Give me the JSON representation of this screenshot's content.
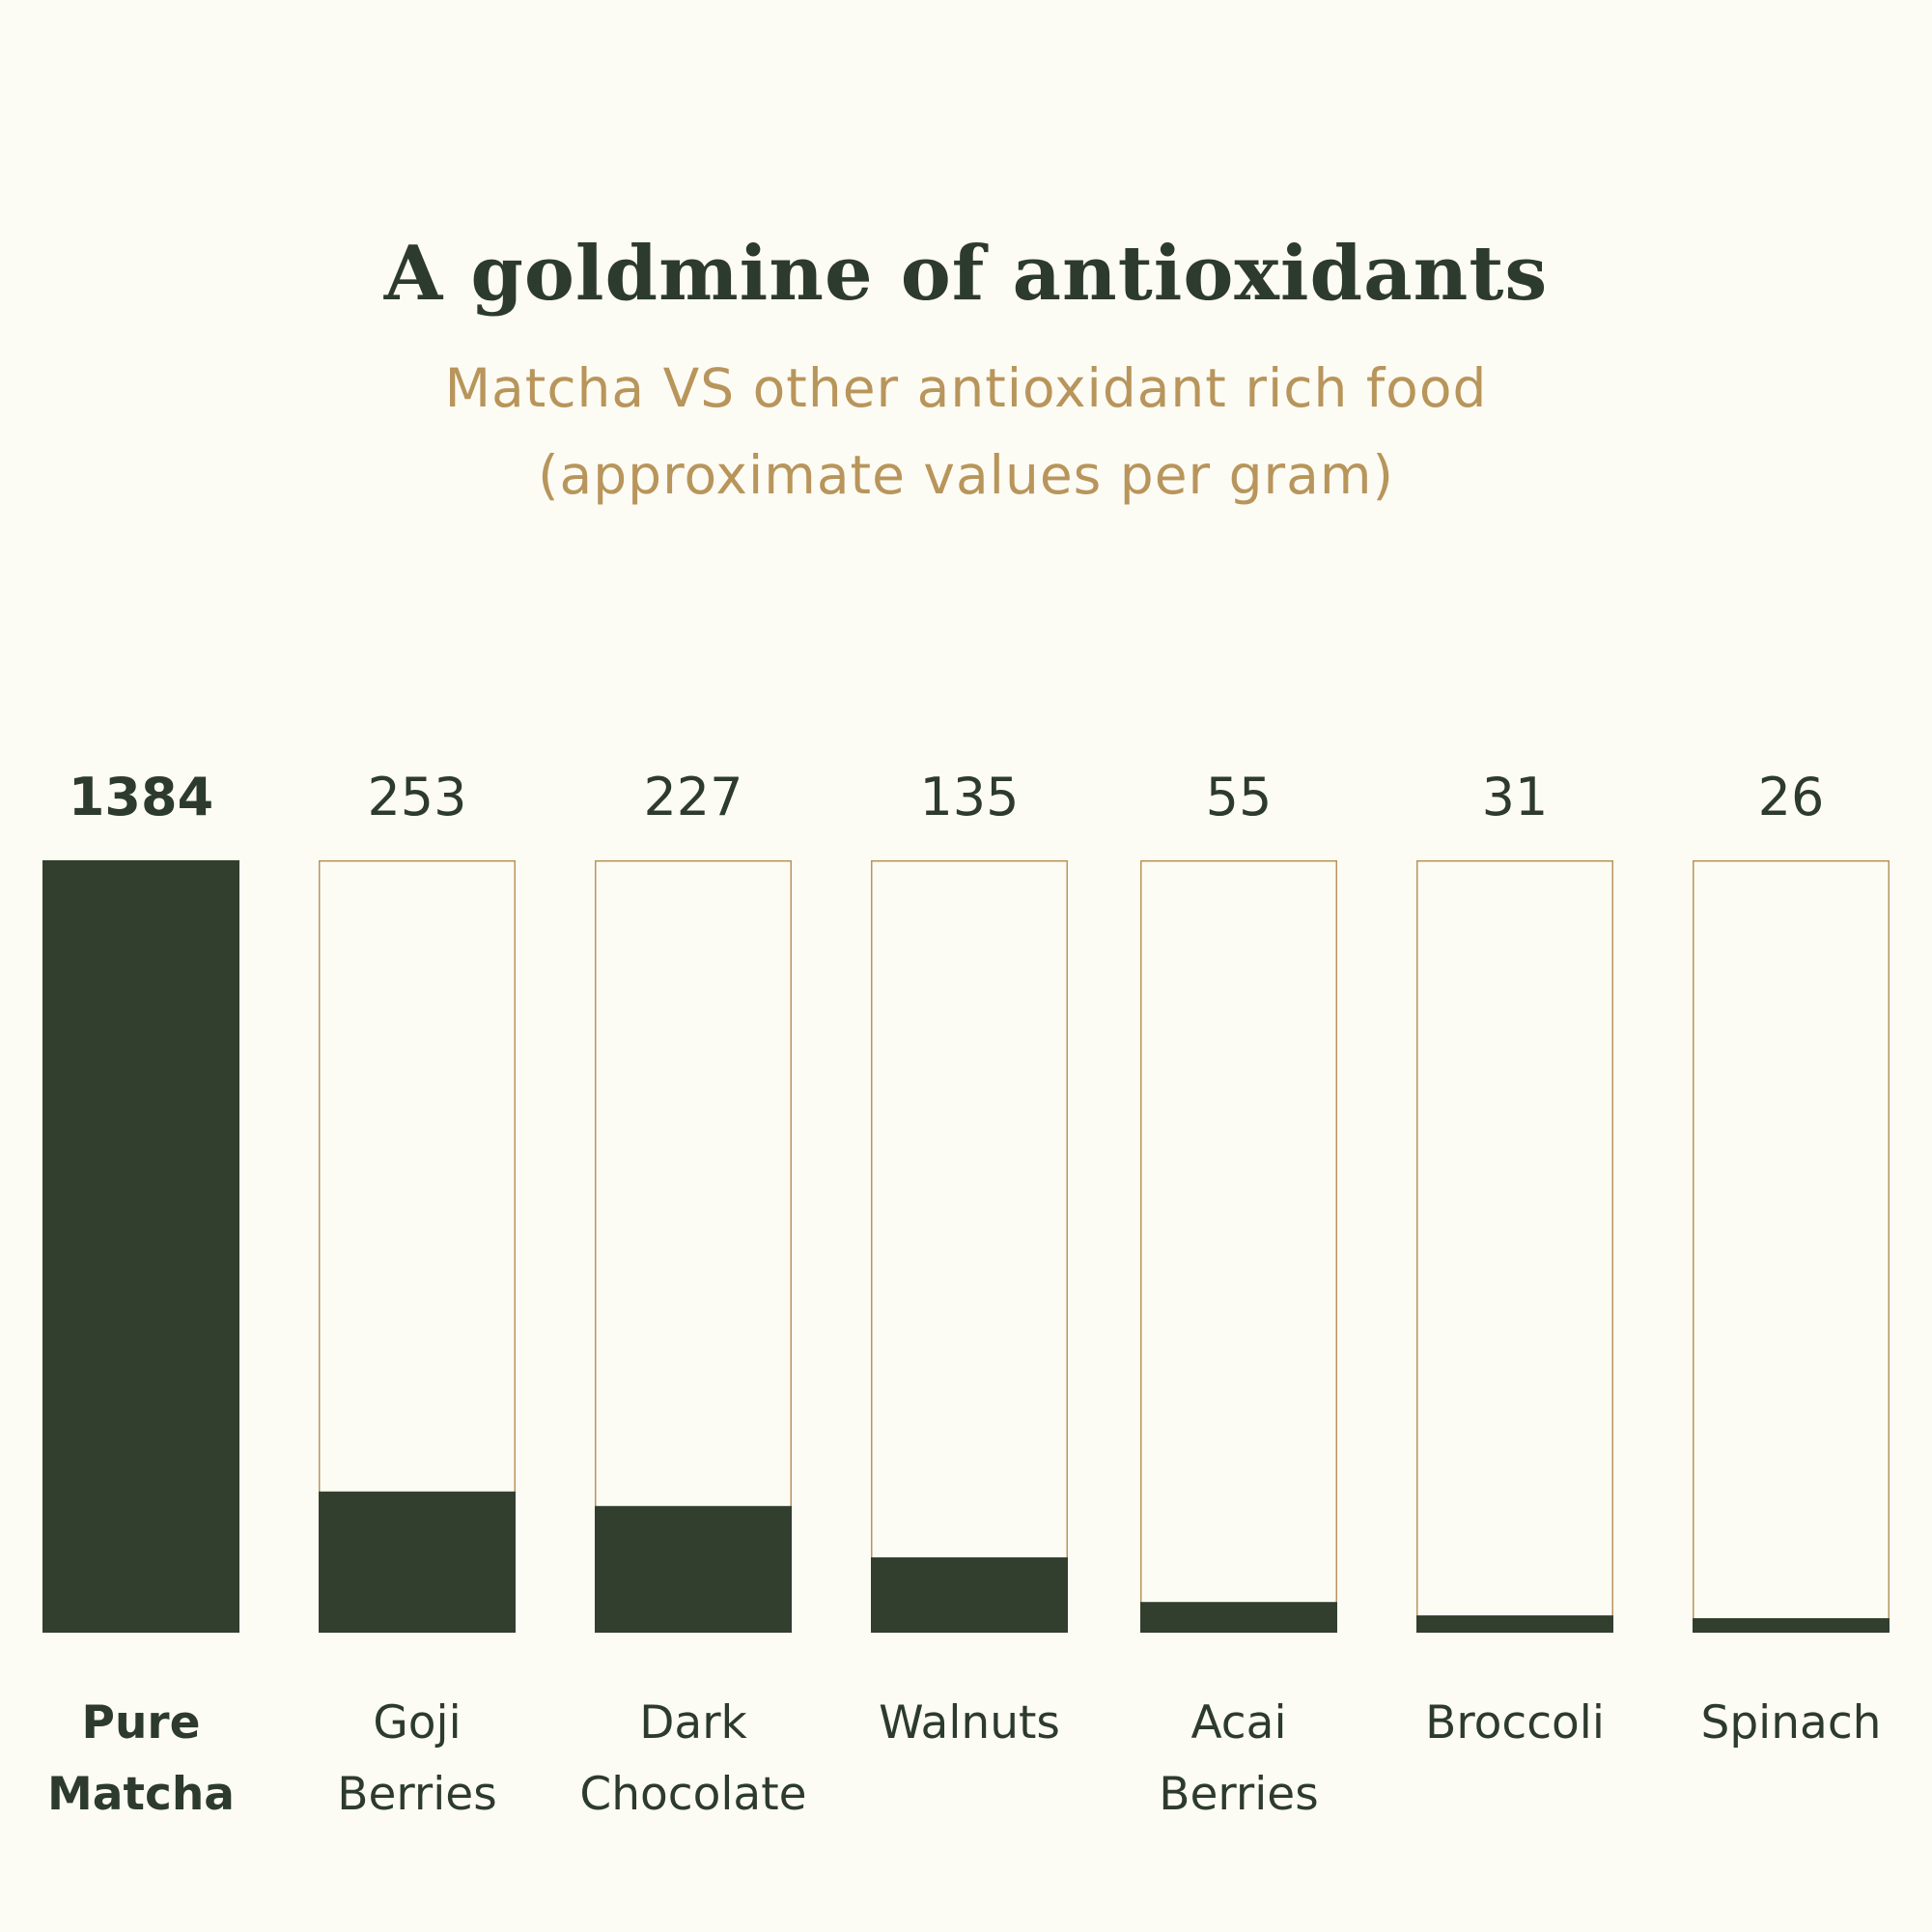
{
  "title": "A goldmine of antioxidants",
  "subtitle_line1": "Matcha VS other antioxidant rich food",
  "subtitle_line2": "(approximate values per gram)",
  "colors": {
    "background": "#fdfcf4",
    "bar_fill": "#323f2f",
    "bar_outline": "#b8955b",
    "title": "#2d3a2e",
    "subtitle": "#b8955b"
  },
  "chart_data": {
    "type": "bar",
    "title": "A goldmine of antioxidants",
    "subtitle": "Matcha VS other antioxidant rich food (approximate values per gram)",
    "categories": [
      [
        "Pure",
        "Matcha"
      ],
      [
        "Goji",
        "Berries"
      ],
      [
        "Dark",
        "Chocolate"
      ],
      [
        "Walnuts"
      ],
      [
        "Acai",
        "Berries"
      ],
      [
        "Broccoli"
      ],
      [
        "Spinach"
      ]
    ],
    "values": [
      1384,
      253,
      227,
      135,
      55,
      31,
      26
    ],
    "value_labels": [
      "1384",
      "253",
      "227",
      "135",
      "55",
      "31",
      "26"
    ],
    "highlight_index": 0,
    "xlabel": "",
    "ylabel": "",
    "ylim": [
      0,
      1384
    ],
    "grid": false,
    "legend": "none"
  }
}
